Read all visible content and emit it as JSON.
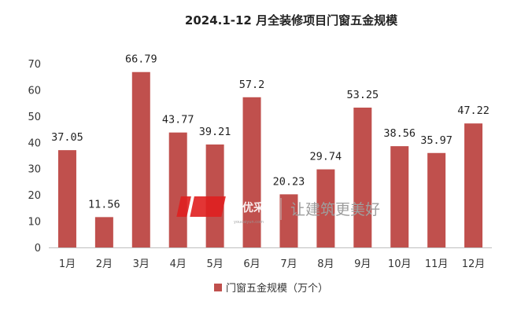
{
  "chart_data": {
    "type": "bar",
    "title": "2024.1-12 月全装修项目门窗五金规模",
    "categories": [
      "1月",
      "2月",
      "3月",
      "4月",
      "5月",
      "6月",
      "7月",
      "8月",
      "9月",
      "10月",
      "11月",
      "12月"
    ],
    "series": [
      {
        "name": "门窗五金规模（万个）",
        "values": [
          37.05,
          11.56,
          66.79,
          43.77,
          39.21,
          57.2,
          20.23,
          29.74,
          53.25,
          38.56,
          35.97,
          47.22
        ],
        "labels": [
          "37.05",
          "11.56",
          "66.79",
          "43.77",
          "39.21",
          "57.2",
          "20.23",
          "29.74",
          "53.25",
          "38.56",
          "35.97",
          "47.22"
        ]
      }
    ],
    "ylim": [
      0,
      70
    ],
    "yticks": [
      "0",
      "10",
      "20",
      "30",
      "40",
      "50",
      "60",
      "70"
    ],
    "grid": false,
    "legend_position": "bottom",
    "colors": {
      "bar": "#C0504D",
      "axis": "#BFBFBF"
    }
  },
  "watermark": {
    "logo_text": "优采",
    "logo_subtext": "youcaiyun.com",
    "slogan": "让建筑更美好"
  }
}
